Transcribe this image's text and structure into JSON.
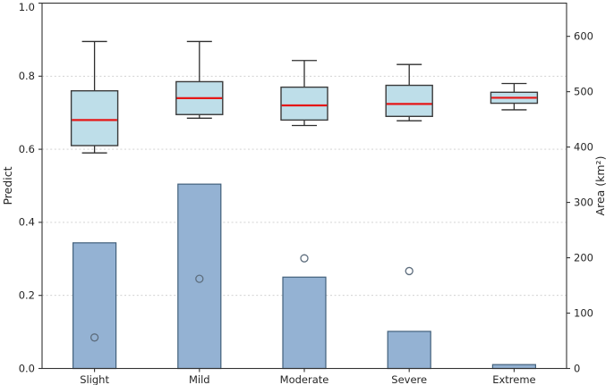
{
  "chart_data": {
    "type": "combo",
    "title": "",
    "categories": [
      "Slight",
      "Mild",
      "Moderate",
      "Severe",
      "Extreme"
    ],
    "left_axis": {
      "label": "Predict",
      "range": [
        0.0,
        1.0
      ],
      "ticks": [
        0.0,
        0.2,
        0.4,
        0.6,
        0.8,
        1.0
      ],
      "tick_labels": [
        "0.0",
        "0.2",
        "0.4",
        "0.6",
        "0.8",
        "1.0"
      ],
      "gridlines": [
        0.2,
        0.4,
        0.6,
        0.8
      ],
      "grid_style": "dashed"
    },
    "right_axis": {
      "label": "Area (km²)",
      "range": [
        0,
        660
      ],
      "ticks": [
        0,
        100,
        200,
        300,
        400,
        500,
        600
      ],
      "tick_labels": [
        "0",
        "100",
        "200",
        "300",
        "400",
        "500",
        "600"
      ]
    },
    "series": [
      {
        "name": "predict-boxplots",
        "type": "boxplot",
        "axis": "left",
        "stats": [
          {
            "category": "Slight",
            "whisker_low": 0.59,
            "q1": 0.61,
            "median": 0.68,
            "q3": 0.76,
            "whisker_high": 0.895
          },
          {
            "category": "Mild",
            "whisker_low": 0.685,
            "q1": 0.695,
            "median": 0.74,
            "q3": 0.785,
            "whisker_high": 0.895
          },
          {
            "category": "Moderate",
            "whisker_low": 0.665,
            "q1": 0.68,
            "median": 0.72,
            "q3": 0.77,
            "whisker_high": 0.843
          },
          {
            "category": "Severe",
            "whisker_low": 0.678,
            "q1": 0.69,
            "median": 0.724,
            "q3": 0.775,
            "whisker_high": 0.832
          },
          {
            "category": "Extreme",
            "whisker_low": 0.708,
            "q1": 0.726,
            "median": 0.741,
            "q3": 0.756,
            "whisker_high": 0.78
          }
        ]
      },
      {
        "name": "area-bars",
        "type": "bar",
        "axis": "right",
        "values": [
          227,
          333,
          165,
          67,
          7
        ]
      },
      {
        "name": "area-mean-points",
        "type": "scatter",
        "axis": "right",
        "values": [
          56,
          162,
          199,
          176,
          null
        ]
      }
    ],
    "legend": null,
    "grid": "horizontal-dashed",
    "colors": {
      "box_fill": "#bedee9",
      "box_edge": "#3a3a3a",
      "median": "#e51717",
      "whisker": "#2f2f2f",
      "bar_fill": "#94b2d3",
      "bar_edge": "#42607b",
      "marker_edge": "#5d6d7d",
      "grid": "#cccccc",
      "spine": "#333333",
      "text": "#262626"
    }
  }
}
